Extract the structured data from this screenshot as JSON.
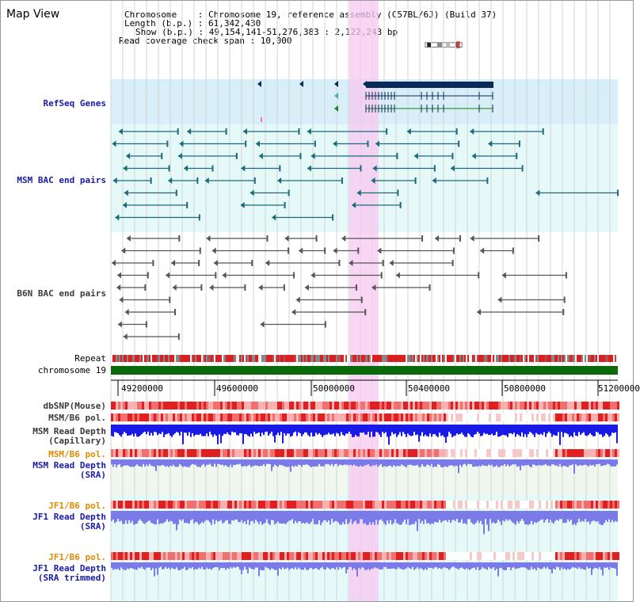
{
  "title": "Map View",
  "info": {
    "chromosome_label": "Chromosome    : Chromosome 19, reference assembly (C57BL/6J) (Build 37)",
    "length_label": "Length (b.p.) : 61,342,430",
    "show_label": "Show (b.p.) : 49,154,141-51,276,383 : 2,122,243 bp",
    "coverage_label": "Read coverage check span : 10,000"
  },
  "tracks": {
    "refseq": "RefSeq Genes",
    "msm_bac": "MSM BAC end pairs",
    "b6n_bac": "B6N BAC end pairs",
    "repeat": "Repeat",
    "chromosome": "chromosome 19",
    "dbsnp": "dbSNP(Mouse)",
    "msm_b6_pol": "MSM/B6 pol.",
    "msm_depth_cap_1": "MSM Read Depth",
    "msm_depth_cap_2": "(Capillary)",
    "msm_b6_pol_sra": "MSM/B6 pol.",
    "msm_depth_sra_1": "MSM Read Depth",
    "msm_depth_sra_2": "(SRA)",
    "jf1_b6_pol": "JF1/B6 pol.",
    "jf1_depth_sra_1": "JF1 Read Depth",
    "jf1_depth_sra_2": "(SRA)",
    "jf1_b6_pol_trim": "JF1/B6 pol.",
    "jf1_depth_trim_1": "JF1 Read Depth",
    "jf1_depth_trim_2": "(SRA trimmed)"
  },
  "axis": {
    "ticks": [
      "49200000",
      "49600000",
      "50000000",
      "50400000",
      "50800000",
      "51200000"
    ]
  },
  "colors": {
    "refseq_bg": "#d8eef8",
    "msm_bg": "#e6f9f9",
    "highlight": "#f7c8f0",
    "gene_dark": "#0a2a5a",
    "msm_feature": "#1a6a7a",
    "b6n_feature": "#555555",
    "chrom_green": "#0a6a0a",
    "depth_blue": "#1a1ae6",
    "depth_light": "#7a7ae8",
    "pol_red": "#e84040"
  }
}
